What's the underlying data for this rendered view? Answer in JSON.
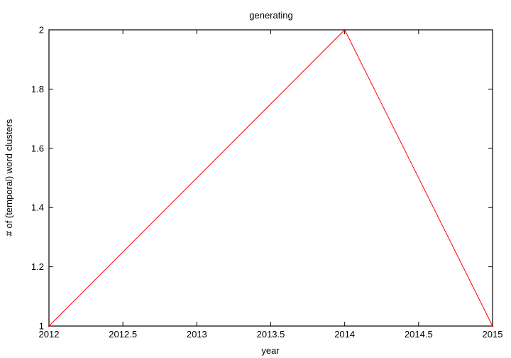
{
  "chart_data": {
    "type": "line",
    "title": "generating",
    "xlabel": "year",
    "ylabel": "# of (temporal) word clusters",
    "xlim": [
      2012,
      2015
    ],
    "ylim": [
      1,
      2
    ],
    "x_ticks": [
      "2012",
      "2012.5",
      "2013",
      "2013.5",
      "2014",
      "2014.5",
      "2015"
    ],
    "y_ticks": [
      "1",
      "1.2",
      "1.4",
      "1.6",
      "1.8",
      "2"
    ],
    "grid": false,
    "series": [
      {
        "color": "#ff0000",
        "x": [
          2012,
          2014,
          2015
        ],
        "y": [
          1,
          2,
          1
        ]
      }
    ]
  }
}
